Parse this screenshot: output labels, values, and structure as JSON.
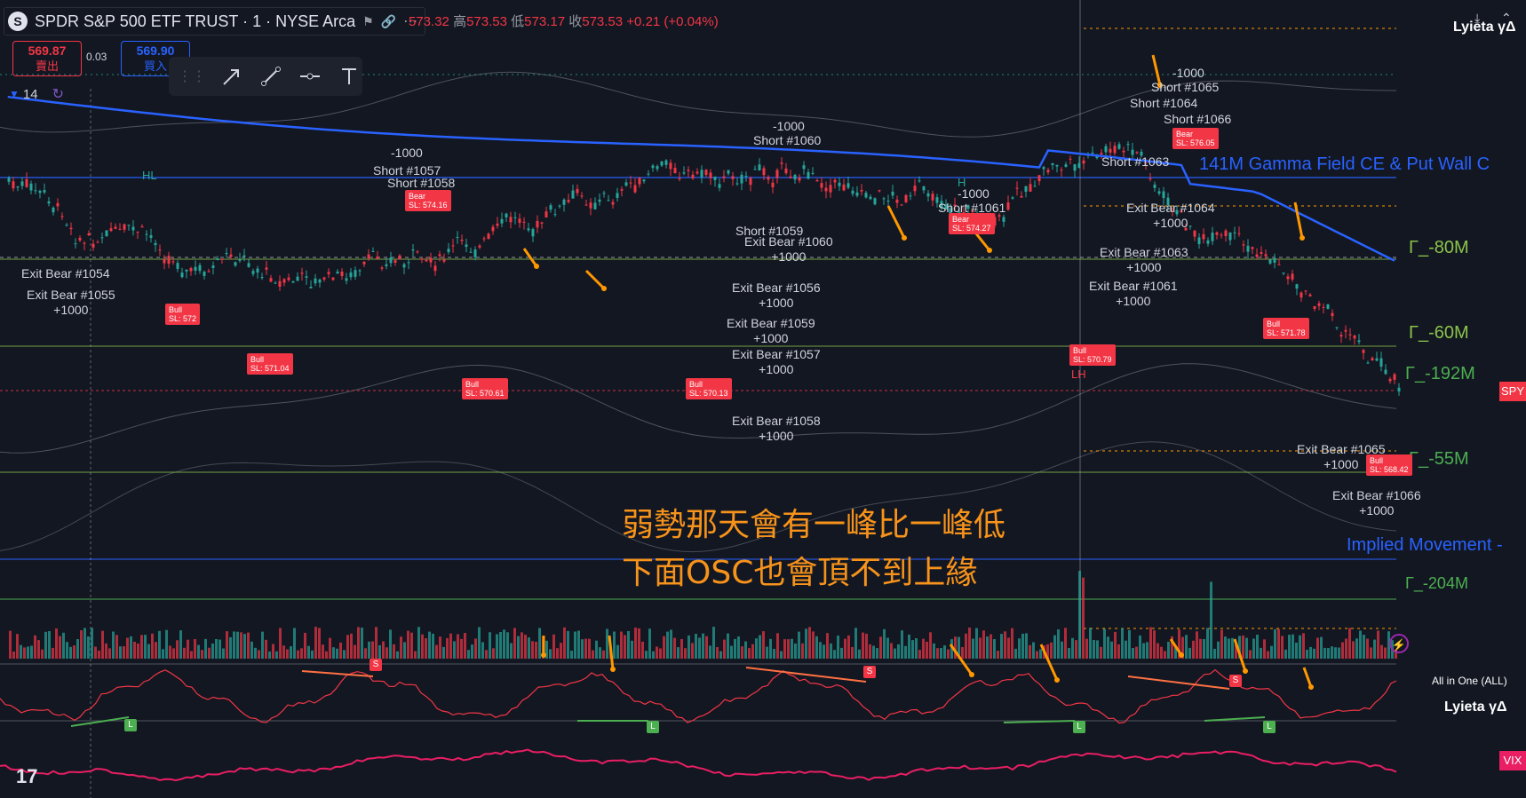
{
  "header": {
    "symbol_badge": "S",
    "title": "SPDR S&P 500 ETF TRUST · 1 · NYSE Arca",
    "ohlc": {
      "close_partial": "573.32",
      "high_label": "高",
      "high": "573.53",
      "low_label": "低",
      "low": "573.17",
      "close_label": "收",
      "close": "573.53",
      "change": "+0.21 (+0.04%)"
    }
  },
  "trade": {
    "sell_price": "569.87",
    "sell_label": "賣出",
    "spread": "0.03",
    "buy_price": "569.90",
    "buy_label": "買入"
  },
  "interval": {
    "value": "14"
  },
  "toolbar": {
    "tools": [
      "arrow-tool-icon",
      "line-tool-icon",
      "horizontal-ray-icon",
      "text-tool-icon"
    ]
  },
  "levels": {
    "gamma_field": "141M  Gamma Field CE & Put Wall C",
    "g80": "Γ_-80M",
    "g60": "Γ_-60M",
    "g192": "Γ_-192M",
    "g55": "Γ_-55M",
    "implied": "Implied Movement -",
    "g204": "Γ_-204M"
  },
  "annotation": {
    "line1": "弱勢那天會有一峰比一峰低",
    "line2": "下面OSC也會頂不到上緣"
  },
  "indicators": {
    "panel_name": "All in One (ALL)",
    "author": "Lyieta γΔ",
    "top_right": "Lyieta γΔ",
    "spy_tag": "SPY",
    "vix_tag": "VIX"
  },
  "trade_labels": [
    {
      "text": "Exit Bear #1054",
      "pnl": ""
    },
    {
      "text": "Exit Bear #1055",
      "pnl": "+1000"
    },
    {
      "text": "-1000",
      "pnl": ""
    },
    {
      "text": "Short #1057",
      "pnl": ""
    },
    {
      "text": "Short #1058",
      "pnl": ""
    },
    {
      "text": "-1000",
      "pnl": ""
    },
    {
      "text": "Short #1060",
      "pnl": ""
    },
    {
      "text": "Short #1059",
      "pnl": ""
    },
    {
      "text": "Exit Bear #1060",
      "pnl": "+1000"
    },
    {
      "text": "Exit Bear #1056",
      "pnl": "+1000"
    },
    {
      "text": "Exit Bear #1059",
      "pnl": "+1000"
    },
    {
      "text": "Exit Bear #1057",
      "pnl": "+1000"
    },
    {
      "text": "Exit Bear #1058",
      "pnl": "+1000"
    },
    {
      "text": "-1000",
      "pnl": ""
    },
    {
      "text": "Short #1061",
      "pnl": ""
    },
    {
      "text": "-1000",
      "pnl": ""
    },
    {
      "text": "Short #1065",
      "pnl": ""
    },
    {
      "text": "Short #1064",
      "pnl": ""
    },
    {
      "text": "Short #1066",
      "pnl": ""
    },
    {
      "text": "Short #1063",
      "pnl": ""
    },
    {
      "text": "Exit Bear #1064",
      "pnl": "+1000"
    },
    {
      "text": "Exit Bear #1063",
      "pnl": "+1000"
    },
    {
      "text": "Exit Bear #1061",
      "pnl": "+1000"
    },
    {
      "text": "Exit Bear #1065",
      "pnl": "+1000"
    },
    {
      "text": "Exit Bear #1066",
      "pnl": "+1000"
    }
  ],
  "tags": {
    "bull_572": "Bull\nSL: 572",
    "bull_57104": "Bull\nSL: 571.04",
    "bull_57061": "Bull\nSL: 570.61",
    "bull_57013": "Bull\nSL: 570.13",
    "bear_57427": "Bear\nSL: 574.27",
    "bull_57079": "Bull\nSL: 570.79",
    "bull_57178": "Bull\nSL: 571.78",
    "bull_56842": "Bull\nSL: 568.42",
    "bear_57416": "Bear\nSL: 574.16",
    "bear_57605": "Bear\nSL: 576.05"
  },
  "markers": {
    "hl": "HL",
    "h": "H",
    "lh": "LH",
    "s": "S",
    "l": "L"
  }
}
